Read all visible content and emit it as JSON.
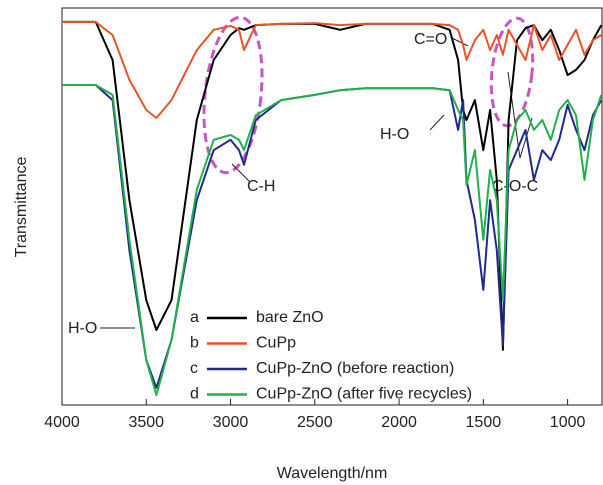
{
  "chart_data": {
    "type": "line",
    "x_label": "Wavelength/nm",
    "y_label": "Transmittance",
    "x": [
      4000,
      3800,
      3700,
      3600,
      3500,
      3440,
      3350,
      3200,
      3100,
      3000,
      2950,
      2920,
      2850,
      2700,
      2500,
      2350,
      2200,
      2000,
      1800,
      1700,
      1650,
      1620,
      1600,
      1550,
      1500,
      1460,
      1420,
      1384,
      1350,
      1300,
      1250,
      1200,
      1150,
      1100,
      1050,
      1000,
      950,
      900,
      850,
      800
    ],
    "xlim": [
      4000,
      790
    ],
    "xticks": [
      4000,
      3500,
      3000,
      2500,
      2000,
      1500,
      1000
    ],
    "ylim": [
      0,
      100
    ],
    "series": [
      {
        "letter": "a",
        "name": "bare ZnO",
        "color": "#000000",
        "values": [
          96.5,
          96.5,
          86.9,
          51.6,
          26.4,
          18.9,
          26.4,
          71.8,
          86.9,
          93.2,
          94.9,
          94.5,
          95.7,
          96.0,
          96.0,
          94.5,
          96.0,
          96.0,
          96.0,
          94.5,
          86.9,
          74.3,
          71.8,
          76.8,
          64.2,
          74.3,
          56.7,
          13.9,
          71.8,
          91.9,
          94.9,
          95.7,
          91.9,
          94.5,
          89.4,
          83.1,
          84.4,
          86.9,
          91.9,
          95.7
        ]
      },
      {
        "letter": "b",
        "name": "CuPp",
        "color": "#e8542a",
        "values": [
          96.5,
          96.5,
          93.2,
          81.9,
          74.3,
          72.3,
          76.8,
          89.4,
          94.5,
          95.5,
          94.5,
          89.4,
          95.7,
          96.0,
          96.2,
          95.7,
          96.0,
          96.0,
          96.0,
          95.7,
          94.5,
          90.7,
          86.9,
          91.9,
          94.5,
          89.4,
          93.2,
          88.2,
          94.5,
          90.7,
          86.9,
          95.7,
          89.4,
          93.2,
          86.9,
          90.7,
          94.5,
          88.2,
          91.9,
          93.2
        ]
      },
      {
        "letter": "c",
        "name": "CuPp-ZnO (before reaction)",
        "color": "#1f2a8c",
        "values": [
          80.6,
          80.6,
          76.8,
          39.0,
          11.3,
          4.3,
          16.4,
          51.6,
          64.2,
          66.8,
          64.2,
          60.5,
          71.8,
          76.8,
          78.1,
          79.3,
          79.8,
          79.8,
          79.8,
          79.3,
          69.3,
          76.8,
          56.7,
          46.6,
          29.0,
          51.6,
          39.0,
          15.1,
          59.2,
          64.2,
          69.3,
          56.7,
          64.2,
          61.7,
          66.8,
          75.6,
          69.3,
          64.2,
          73.0,
          76.8
        ]
      },
      {
        "letter": "d",
        "name": "CuPp-ZnO (after five recycles)",
        "color": "#22b04b",
        "values": [
          80.6,
          80.6,
          78.1,
          41.6,
          11.3,
          2.5,
          16.4,
          54.2,
          66.8,
          68.0,
          66.8,
          64.2,
          73.0,
          76.8,
          78.1,
          79.3,
          79.8,
          79.8,
          79.8,
          79.3,
          74.3,
          71.8,
          55.4,
          64.2,
          41.6,
          59.2,
          51.6,
          26.4,
          64.2,
          71.8,
          74.3,
          69.3,
          71.8,
          66.8,
          74.3,
          76.8,
          73.0,
          56.7,
          71.8,
          78.1
        ]
      }
    ],
    "annotations": [
      "C-H",
      "C=O",
      "H-O",
      "C-O-C",
      "H-O"
    ]
  }
}
